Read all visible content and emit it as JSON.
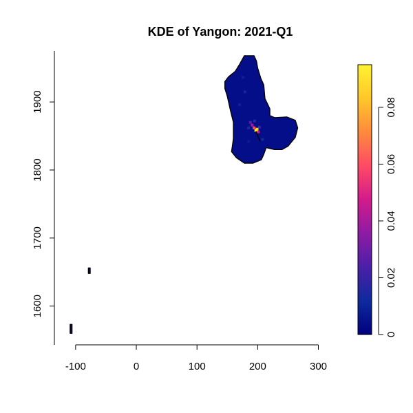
{
  "chart_data": {
    "type": "heatmap",
    "title": "KDE of Yangon: 2021-Q1",
    "xlabel": "",
    "ylabel": "",
    "xlim": [
      -135,
      355
    ],
    "ylim": [
      1543,
      1975
    ],
    "x_ticks": [
      -100,
      0,
      100,
      200,
      300
    ],
    "x_tick_labels": [
      "-100",
      "0",
      "100",
      "200",
      "300"
    ],
    "y_ticks": [
      1600,
      1700,
      1800,
      1900
    ],
    "y_tick_labels": [
      "1600",
      "1700",
      "1800",
      "1900"
    ],
    "colorbar": {
      "range": [
        0,
        0.095
      ],
      "ticks": [
        0,
        0.02,
        0.04,
        0.06,
        0.08
      ],
      "tick_labels": [
        "0",
        "0.02",
        "0.04",
        "0.06",
        "0.08"
      ],
      "colors": [
        "#00007f",
        "#0e2a9e",
        "#4b1fa8",
        "#8e1ba4",
        "#d21b8c",
        "#ff4a65",
        "#ff8a3c",
        "#ffc72a",
        "#fff230"
      ]
    },
    "regions": [
      {
        "name": "main-area",
        "fill_value": 0.004,
        "outline": [
          [
            178,
            1968
          ],
          [
            194,
            1968
          ],
          [
            198,
            1960
          ],
          [
            200,
            1950
          ],
          [
            205,
            1935
          ],
          [
            210,
            1925
          ],
          [
            212,
            1905
          ],
          [
            220,
            1890
          ],
          [
            220,
            1880
          ],
          [
            228,
            1877
          ],
          [
            248,
            1878
          ],
          [
            262,
            1873
          ],
          [
            266,
            1862
          ],
          [
            262,
            1848
          ],
          [
            250,
            1835
          ],
          [
            240,
            1830
          ],
          [
            228,
            1830
          ],
          [
            214,
            1833
          ],
          [
            210,
            1823
          ],
          [
            206,
            1815
          ],
          [
            192,
            1810
          ],
          [
            178,
            1810
          ],
          [
            165,
            1818
          ],
          [
            157,
            1827
          ],
          [
            160,
            1846
          ],
          [
            160,
            1870
          ],
          [
            155,
            1888
          ],
          [
            150,
            1908
          ],
          [
            146,
            1920
          ],
          [
            146,
            1930
          ],
          [
            152,
            1937
          ],
          [
            163,
            1945
          ],
          [
            170,
            1955
          ]
        ]
      },
      {
        "name": "island-west",
        "fill_value": 0.003,
        "outline": [
          [
            -79,
            1656
          ],
          [
            -76,
            1656
          ],
          [
            -76,
            1648
          ],
          [
            -79,
            1648
          ]
        ]
      },
      {
        "name": "island-southwest",
        "fill_value": 0.003,
        "outline": [
          [
            -109,
            1573
          ],
          [
            -106,
            1573
          ],
          [
            -106,
            1560
          ],
          [
            -109,
            1560
          ]
        ]
      }
    ],
    "hotspots": [
      {
        "x": 197,
        "y": 1858,
        "value": 0.095
      },
      {
        "x": 199,
        "y": 1860,
        "value": 0.085
      },
      {
        "x": 194,
        "y": 1862,
        "value": 0.06
      },
      {
        "x": 191,
        "y": 1866,
        "value": 0.04
      },
      {
        "x": 201,
        "y": 1856,
        "value": 0.045
      },
      {
        "x": 188,
        "y": 1870,
        "value": 0.025
      },
      {
        "x": 195,
        "y": 1872,
        "value": 0.018
      },
      {
        "x": 203,
        "y": 1863,
        "value": 0.02
      },
      {
        "x": 185,
        "y": 1862,
        "value": 0.015
      },
      {
        "x": 179,
        "y": 1915,
        "value": 0.012
      },
      {
        "x": 176,
        "y": 1936,
        "value": 0.009
      },
      {
        "x": 170,
        "y": 1896,
        "value": 0.01
      },
      {
        "x": 208,
        "y": 1845,
        "value": 0.012
      },
      {
        "x": 185,
        "y": 1842,
        "value": 0.008
      }
    ]
  }
}
